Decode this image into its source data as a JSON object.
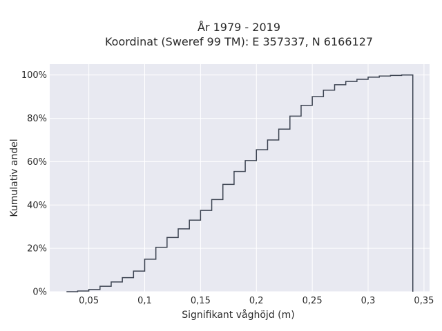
{
  "chart_data": {
    "type": "line",
    "title_line1": "År 1979 - 2019",
    "title_line2": "Koordinat (Sweref 99 TM): E 357337, N 6166127",
    "xlabel": "Signifikant våghöjd (m)",
    "ylabel": "Kumulativ andel",
    "xlim": [
      0.015,
      0.355
    ],
    "ylim": [
      0,
      1.05
    ],
    "x_ticks": [
      {
        "value": 0.05,
        "label": "0,05"
      },
      {
        "value": 0.1,
        "label": "0,1"
      },
      {
        "value": 0.15,
        "label": "0,15"
      },
      {
        "value": 0.2,
        "label": "0,2"
      },
      {
        "value": 0.25,
        "label": "0,25"
      },
      {
        "value": 0.3,
        "label": "0,3"
      },
      {
        "value": 0.35,
        "label": "0,35"
      }
    ],
    "y_ticks": [
      {
        "value": 0,
        "label": "0%"
      },
      {
        "value": 0.2,
        "label": "20%"
      },
      {
        "value": 0.4,
        "label": "40%"
      },
      {
        "value": 0.6,
        "label": "60%"
      },
      {
        "value": 0.8,
        "label": "80%"
      },
      {
        "value": 1.0,
        "label": "100%"
      }
    ],
    "line_color": "#3d4452",
    "plot_bg": "#e8e9f1",
    "grid": true,
    "steps": {
      "x": [
        0.03,
        0.04,
        0.05,
        0.06,
        0.07,
        0.08,
        0.09,
        0.1,
        0.11,
        0.12,
        0.13,
        0.14,
        0.15,
        0.16,
        0.17,
        0.18,
        0.19,
        0.2,
        0.21,
        0.22,
        0.23,
        0.24,
        0.25,
        0.26,
        0.27,
        0.28,
        0.29,
        0.3,
        0.31,
        0.32,
        0.33,
        0.34
      ],
      "y": [
        0.0,
        0.003,
        0.01,
        0.025,
        0.045,
        0.065,
        0.095,
        0.15,
        0.205,
        0.25,
        0.29,
        0.33,
        0.375,
        0.425,
        0.495,
        0.555,
        0.605,
        0.655,
        0.7,
        0.75,
        0.81,
        0.86,
        0.9,
        0.93,
        0.955,
        0.97,
        0.98,
        0.99,
        0.995,
        0.998,
        1.0,
        0.0
      ]
    }
  }
}
